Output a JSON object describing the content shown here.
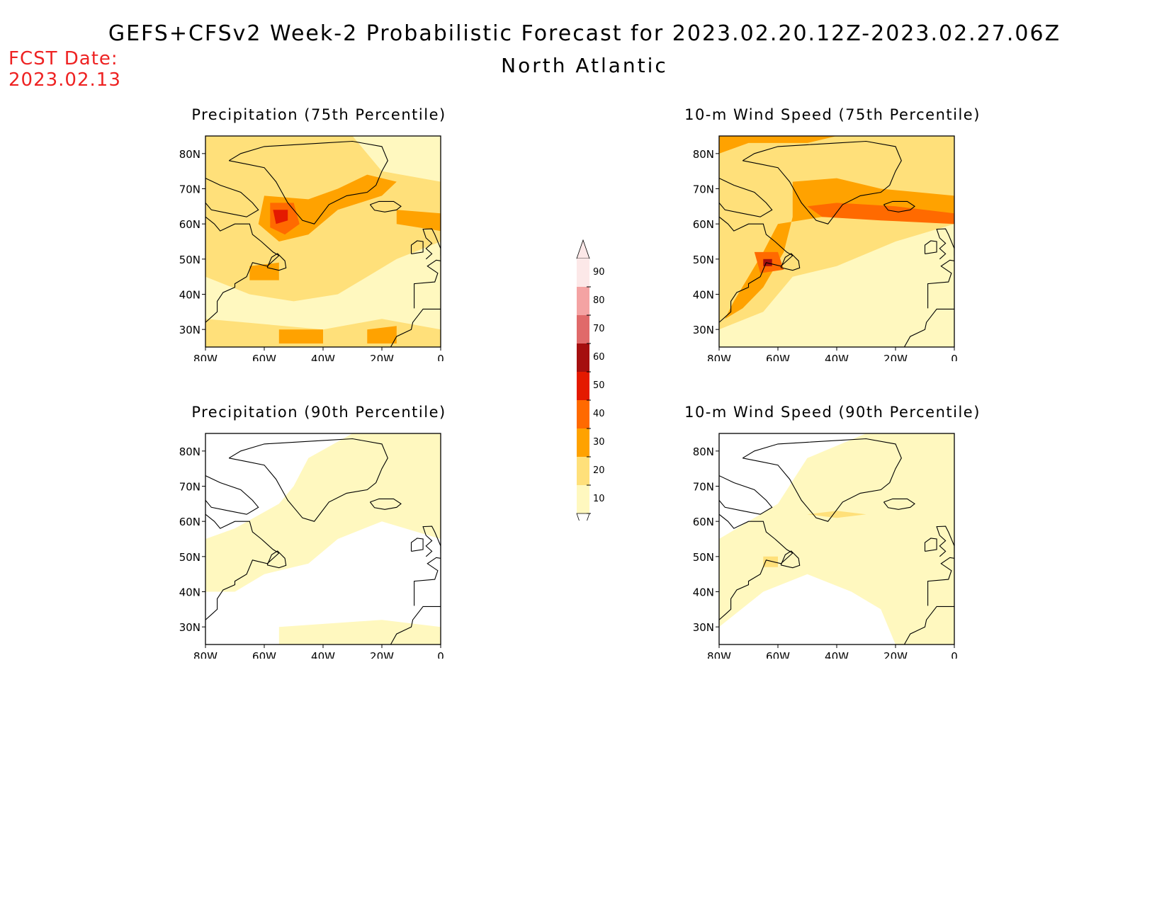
{
  "header": {
    "title": "GEFS+CFSv2 Week-2 Probabilistic Forecast for 2023.02.20.12Z-2023.02.27.06Z",
    "region": "North Atlantic",
    "fcst_label": "FCST Date:",
    "fcst_date": "2023.02.13"
  },
  "axes": {
    "lat_ticks": [
      "80N",
      "70N",
      "60N",
      "50N",
      "40N",
      "30N"
    ],
    "lon_ticks": [
      "80W",
      "60W",
      "40W",
      "20W",
      "0"
    ]
  },
  "panels": [
    {
      "id": "precip75",
      "title": "Precipitation (75th Percentile)",
      "intensity": "high"
    },
    {
      "id": "wind75",
      "title": "10-m Wind Speed (75th Percentile)",
      "intensity": "high"
    },
    {
      "id": "precip90",
      "title": "Precipitation (90th Percentile)",
      "intensity": "low"
    },
    {
      "id": "wind90",
      "title": "10-m Wind Speed (90th Percentile)",
      "intensity": "low"
    }
  ],
  "colorbar": {
    "levels": [
      "90",
      "80",
      "70",
      "60",
      "50",
      "40",
      "30",
      "20",
      "10"
    ],
    "colors": [
      "#fce8e8",
      "#f4a3a3",
      "#e06a6a",
      "#a50f0f",
      "#e41a00",
      "#ff6a00",
      "#ffa200",
      "#ffe07a",
      "#fff8bf"
    ]
  }
}
